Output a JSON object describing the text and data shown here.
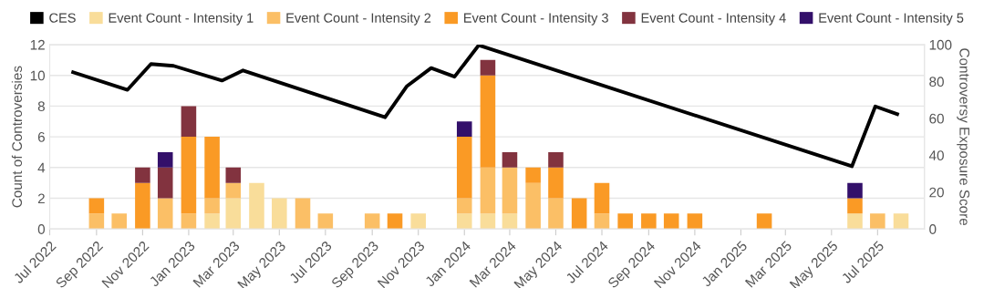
{
  "chart_data": {
    "type": "bar",
    "stacked": true,
    "x": [
      "2022-09",
      "2022-10",
      "2022-11",
      "2022-12",
      "2023-01",
      "2023-02",
      "2023-03",
      "2023-04",
      "2023-05",
      "2023-06",
      "2023-07",
      "2023-09",
      "2023-10",
      "2023-11",
      "2024-01",
      "2024-02",
      "2024-03",
      "2024-04",
      "2024-05",
      "2024-06",
      "2024-07",
      "2024-08",
      "2024-09",
      "2024-10",
      "2024-11",
      "2025-02",
      "2025-06",
      "2025-07",
      "2025-08"
    ],
    "series": [
      {
        "name": "CES",
        "type": "line",
        "axis": "y2",
        "color": "#000000",
        "x": [
          "2022-08-01",
          "2022-10-12",
          "2022-11-12",
          "2022-12-12",
          "2023-02-14",
          "2023-03-14",
          "2023-09-18",
          "2023-10-17",
          "2023-11-18",
          "2023-12-19",
          "2024-01-20",
          "2025-05-28",
          "2025-06-28",
          "2025-07-27"
        ],
        "values": [
          85,
          75.5,
          89.5,
          88.5,
          80.5,
          86,
          60.6,
          77.5,
          87.3,
          82.6,
          99.7,
          34,
          66.5,
          62.3
        ]
      },
      {
        "name": "Event Count - Intensity 1",
        "color": "#f9dd9a",
        "values": [
          null,
          null,
          null,
          null,
          null,
          1,
          2,
          3,
          2,
          null,
          null,
          null,
          null,
          1,
          1,
          1,
          1,
          null,
          null,
          null,
          null,
          null,
          null,
          null,
          null,
          null,
          1,
          null,
          1
        ]
      },
      {
        "name": "Event Count - Intensity 2",
        "color": "#fbbf66",
        "values": [
          1,
          1,
          null,
          2,
          1,
          1,
          1,
          null,
          null,
          2,
          1,
          1,
          null,
          null,
          1,
          3,
          3,
          3,
          2,
          null,
          1,
          null,
          null,
          null,
          null,
          null,
          null,
          1,
          null
        ]
      },
      {
        "name": "Event Count - Intensity 3",
        "color": "#fa9a25",
        "values": [
          1,
          null,
          3,
          null,
          5,
          4,
          null,
          null,
          null,
          null,
          null,
          null,
          1,
          null,
          4,
          6,
          null,
          1,
          2,
          2,
          2,
          1,
          1,
          1,
          1,
          1,
          1,
          null,
          null
        ]
      },
      {
        "name": "Event Count - Intensity 4",
        "color": "#82333f",
        "values": [
          null,
          null,
          1,
          2,
          2,
          null,
          1,
          null,
          null,
          null,
          null,
          null,
          null,
          null,
          null,
          1,
          1,
          null,
          1,
          null,
          null,
          null,
          null,
          null,
          null,
          null,
          null,
          null,
          null
        ]
      },
      {
        "name": "Event Count - Intensity 5",
        "color": "#33106a",
        "values": [
          null,
          null,
          null,
          1,
          null,
          null,
          null,
          null,
          null,
          null,
          null,
          null,
          null,
          null,
          1,
          null,
          null,
          null,
          null,
          null,
          null,
          null,
          null,
          null,
          null,
          null,
          1,
          null,
          null
        ]
      }
    ],
    "ylabel": "Count of Controversies",
    "y2label": "Controversy Exposure Score",
    "xlim": [
      "2022-07-01",
      "2025-09-01"
    ],
    "xticks": [
      {
        "value": "2022-07-01",
        "label": "Jul 2022"
      },
      {
        "value": "2022-09-01",
        "label": "Sep 2022"
      },
      {
        "value": "2022-11-01",
        "label": "Nov 2022"
      },
      {
        "value": "2023-01-01",
        "label": "Jan 2023"
      },
      {
        "value": "2023-03-01",
        "label": "Mar 2023"
      },
      {
        "value": "2023-05-01",
        "label": "May 2023"
      },
      {
        "value": "2023-07-01",
        "label": "Jul 2023"
      },
      {
        "value": "2023-09-01",
        "label": "Sep 2023"
      },
      {
        "value": "2023-11-01",
        "label": "Nov 2023"
      },
      {
        "value": "2024-01-01",
        "label": "Jan 2024"
      },
      {
        "value": "2024-03-01",
        "label": "Mar 2024"
      },
      {
        "value": "2024-05-01",
        "label": "May 2024"
      },
      {
        "value": "2024-07-01",
        "label": "Jul 2024"
      },
      {
        "value": "2024-09-01",
        "label": "Sep 2024"
      },
      {
        "value": "2024-11-01",
        "label": "Nov 2024"
      },
      {
        "value": "2025-01-01",
        "label": "Jan 2025"
      },
      {
        "value": "2025-03-01",
        "label": "Mar 2025"
      },
      {
        "value": "2025-05-01",
        "label": "May 2025"
      },
      {
        "value": "2025-07-01",
        "label": "Jul 2025"
      }
    ],
    "ylim": [
      0,
      12
    ],
    "yticks": [
      0,
      2,
      4,
      6,
      8,
      10,
      12
    ],
    "y2lim": [
      0,
      100
    ],
    "y2ticks": [
      0,
      20,
      40,
      60,
      80,
      100
    ],
    "grid": "y",
    "legend": "top"
  }
}
